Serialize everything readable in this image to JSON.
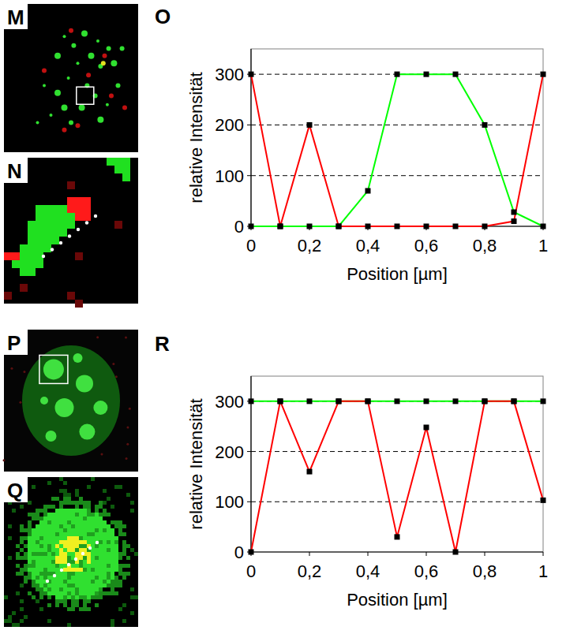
{
  "images": [
    {
      "label": "M"
    },
    {
      "label": "N"
    },
    {
      "label": "P"
    },
    {
      "label": "Q"
    }
  ],
  "chart_data": [
    {
      "type": "line",
      "panel_label": "O",
      "x_label": "Position [µm]",
      "y_label": "relative Intensität",
      "x": [
        0,
        0.1,
        0.2,
        0.3,
        0.4,
        0.5,
        0.6,
        0.7,
        0.8,
        0.9,
        1
      ],
      "series": [
        {
          "color": "#ff0000",
          "marker": "square",
          "values": [
            300,
            0,
            200,
            0,
            0,
            0,
            0,
            0,
            0,
            10,
            300
          ]
        },
        {
          "color": "#00ff00",
          "marker": "square",
          "values": [
            0,
            0,
            0,
            0,
            70,
            300,
            300,
            300,
            200,
            28,
            0
          ]
        }
      ],
      "xlim": [
        0,
        1
      ],
      "xticks": [
        0,
        {
          "value": 0.2,
          "label": "0,2"
        },
        {
          "value": 0.4,
          "label": "0,4"
        },
        {
          "value": 0.6,
          "label": "0,6"
        },
        {
          "value": 0.8,
          "label": "0,8"
        },
        1
      ],
      "ylim": [
        0,
        350
      ],
      "yticks": [
        0,
        100,
        200,
        300
      ],
      "grid": true
    },
    {
      "type": "line",
      "panel_label": "R",
      "x_label": "Position [µm]",
      "y_label": "relative Intensität",
      "x": [
        0,
        0.1,
        0.2,
        0.3,
        0.4,
        0.5,
        0.6,
        0.7,
        0.8,
        0.9,
        1
      ],
      "series": [
        {
          "color": "#00ff00",
          "marker": "square",
          "values": [
            300,
            300,
            300,
            300,
            300,
            300,
            300,
            300,
            300,
            300,
            300
          ]
        },
        {
          "color": "#ff0000",
          "marker": "square",
          "values": [
            0,
            300,
            160,
            300,
            300,
            30,
            248,
            0,
            300,
            300,
            103
          ]
        }
      ],
      "xlim": [
        0,
        1
      ],
      "xticks": [
        0,
        {
          "value": 0.2,
          "label": "0,2"
        },
        {
          "value": 0.4,
          "label": "0,4"
        },
        {
          "value": 0.6,
          "label": "0,6"
        },
        {
          "value": 0.8,
          "label": "0,8"
        },
        1
      ],
      "ylim": [
        0,
        350
      ],
      "yticks": [
        0,
        100,
        200,
        300
      ],
      "grid": true
    }
  ]
}
